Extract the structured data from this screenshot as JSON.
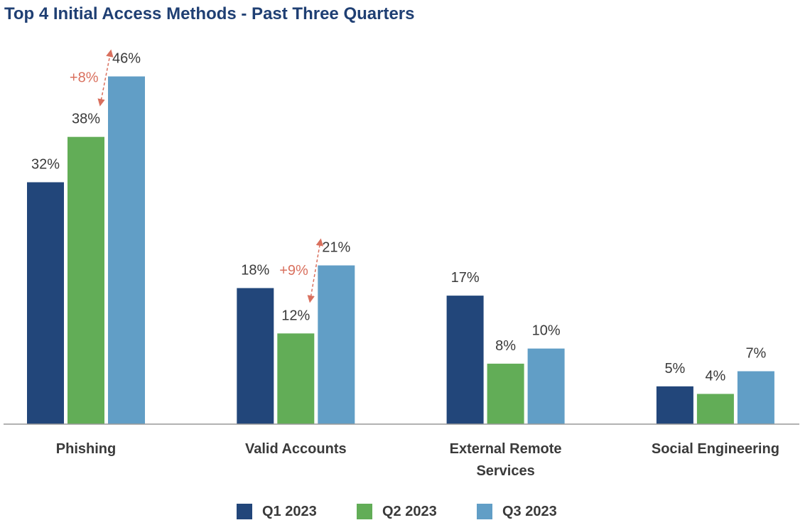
{
  "chart_data": {
    "type": "bar",
    "title": "Top 4 Initial Access Methods - Past Three Quarters",
    "categories": [
      "Phishing",
      "Valid Accounts",
      "External Remote Services",
      "Social Engineering"
    ],
    "category_lines": [
      [
        "Phishing"
      ],
      [
        "Valid Accounts"
      ],
      [
        "External Remote",
        "Services"
      ],
      [
        "Social Engineering"
      ]
    ],
    "series": [
      {
        "name": "Q1 2023",
        "color": "#22467a",
        "values": [
          32,
          18,
          17,
          5
        ],
        "labels": [
          "32%",
          "18%",
          "17%",
          "5%"
        ]
      },
      {
        "name": "Q2 2023",
        "color": "#62ad57",
        "values": [
          38,
          12,
          8,
          4
        ],
        "labels": [
          "38%",
          "12%",
          "8%",
          "4%"
        ]
      },
      {
        "name": "Q3 2023",
        "color": "#619ec6",
        "values": [
          46,
          21,
          10,
          7
        ],
        "labels": [
          "46%",
          "21%",
          "10%",
          "7%"
        ]
      }
    ],
    "ylim": [
      0,
      50
    ],
    "grid": false,
    "legend_position": "bottom",
    "annotations": [
      {
        "text": "+8%",
        "category": "Phishing",
        "from_series": "Q2 2023",
        "to_series": "Q3 2023",
        "direction": "both",
        "color": "#d9705e"
      },
      {
        "text": "+9%",
        "category": "Valid Accounts",
        "from_series": "Q2 2023",
        "to_series": "Q3 2023",
        "direction": "both",
        "color": "#d9705e"
      }
    ]
  }
}
